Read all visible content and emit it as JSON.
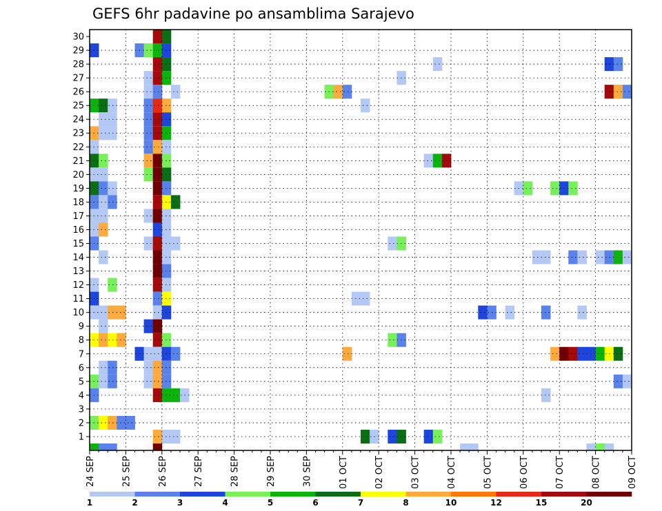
{
  "chart_data": {
    "type": "heatmap",
    "title": "GEFS 6hr padavine po ansamblima Sarajevo",
    "xlabel": "",
    "ylabel": "",
    "x_ticks": [
      "24 SEP",
      "25 SEP",
      "26 SEP",
      "27 SEP",
      "28 SEP",
      "29 SEP",
      "30 SEP",
      "01 OCT",
      "02 OCT",
      "03 OCT",
      "04 OCT",
      "05 OCT",
      "06 OCT",
      "07 OCT",
      "08 OCT",
      "09 OCT"
    ],
    "y_ticks": [
      "1",
      "2",
      "3",
      "4",
      "5",
      "6",
      "7",
      "8",
      "9",
      "10",
      "11",
      "12",
      "13",
      "14",
      "15",
      "16",
      "17",
      "18",
      "19",
      "20",
      "21",
      "22",
      "23",
      "24",
      "25",
      "26",
      "27",
      "28",
      "29",
      "30"
    ],
    "ylim": [
      0,
      30
    ],
    "x_step_unit": "6hr",
    "colorbar": {
      "labels": [
        "1",
        "2",
        "3",
        "4",
        "5",
        "6",
        "7",
        "8",
        "10",
        "12",
        "15",
        "20"
      ],
      "colors": [
        "#b4c8f5",
        "#5a82eb",
        "#1e46dc",
        "#78f05a",
        "#0ab40a",
        "#0a6e14",
        "#ffff00",
        "#ffaa3c",
        "#ff7800",
        "#e62814",
        "#a50a0a",
        "#6e0000"
      ]
    },
    "cells": [
      {
        "member": 30,
        "step": 8,
        "value": 15
      },
      {
        "member": 30,
        "step": 9,
        "value": 6
      },
      {
        "member": 29,
        "step": 1,
        "value": 3
      },
      {
        "member": 29,
        "step": 6,
        "value": 2
      },
      {
        "member": 29,
        "step": 7,
        "value": 4
      },
      {
        "member": 29,
        "step": 8,
        "value": 5
      },
      {
        "member": 29,
        "step": 9,
        "value": 3
      },
      {
        "member": 28,
        "step": 8,
        "value": 15
      },
      {
        "member": 28,
        "step": 9,
        "value": 6
      },
      {
        "member": 28,
        "step": 39,
        "value": 1
      },
      {
        "member": 28,
        "step": 58,
        "value": 3
      },
      {
        "member": 28,
        "step": 59,
        "value": 2
      },
      {
        "member": 27,
        "step": 7,
        "value": 1
      },
      {
        "member": 27,
        "step": 8,
        "value": 15
      },
      {
        "member": 27,
        "step": 9,
        "value": 5
      },
      {
        "member": 27,
        "step": 35,
        "value": 1
      },
      {
        "member": 26,
        "step": 7,
        "value": 1
      },
      {
        "member": 26,
        "step": 8,
        "value": 2
      },
      {
        "member": 26,
        "step": 10,
        "value": 1
      },
      {
        "member": 26,
        "step": 27,
        "value": 4
      },
      {
        "member": 26,
        "step": 28,
        "value": 8
      },
      {
        "member": 26,
        "step": 29,
        "value": 2
      },
      {
        "member": 26,
        "step": 58,
        "value": 15
      },
      {
        "member": 26,
        "step": 59,
        "value": 8
      },
      {
        "member": 26,
        "step": 60,
        "value": 2
      },
      {
        "member": 25,
        "step": 1,
        "value": 5
      },
      {
        "member": 25,
        "step": 2,
        "value": 6
      },
      {
        "member": 25,
        "step": 3,
        "value": 1
      },
      {
        "member": 25,
        "step": 7,
        "value": 2
      },
      {
        "member": 25,
        "step": 8,
        "value": 12
      },
      {
        "member": 25,
        "step": 9,
        "value": 8
      },
      {
        "member": 25,
        "step": 31,
        "value": 1
      },
      {
        "member": 24,
        "step": 2,
        "value": 1
      },
      {
        "member": 24,
        "step": 3,
        "value": 1
      },
      {
        "member": 24,
        "step": 7,
        "value": 2
      },
      {
        "member": 24,
        "step": 8,
        "value": 15
      },
      {
        "member": 24,
        "step": 9,
        "value": 3
      },
      {
        "member": 23,
        "step": 1,
        "value": 8
      },
      {
        "member": 23,
        "step": 2,
        "value": 1
      },
      {
        "member": 23,
        "step": 3,
        "value": 1
      },
      {
        "member": 23,
        "step": 7,
        "value": 2
      },
      {
        "member": 23,
        "step": 8,
        "value": 15
      },
      {
        "member": 23,
        "step": 9,
        "value": 5
      },
      {
        "member": 22,
        "step": 1,
        "value": 1
      },
      {
        "member": 22,
        "step": 7,
        "value": 2
      },
      {
        "member": 22,
        "step": 8,
        "value": 8
      },
      {
        "member": 22,
        "step": 9,
        "value": 1
      },
      {
        "member": 21,
        "step": 1,
        "value": 6
      },
      {
        "member": 21,
        "step": 2,
        "value": 4
      },
      {
        "member": 21,
        "step": 7,
        "value": 8
      },
      {
        "member": 21,
        "step": 8,
        "value": 20
      },
      {
        "member": 21,
        "step": 9,
        "value": 4
      },
      {
        "member": 21,
        "step": 38,
        "value": 1
      },
      {
        "member": 21,
        "step": 39,
        "value": 5
      },
      {
        "member": 21,
        "step": 40,
        "value": 15
      },
      {
        "member": 20,
        "step": 1,
        "value": 1
      },
      {
        "member": 20,
        "step": 2,
        "value": 1
      },
      {
        "member": 20,
        "step": 7,
        "value": 4
      },
      {
        "member": 20,
        "step": 8,
        "value": 20
      },
      {
        "member": 20,
        "step": 9,
        "value": 6
      },
      {
        "member": 19,
        "step": 1,
        "value": 6
      },
      {
        "member": 19,
        "step": 2,
        "value": 2
      },
      {
        "member": 19,
        "step": 3,
        "value": 1
      },
      {
        "member": 19,
        "step": 8,
        "value": 20
      },
      {
        "member": 19,
        "step": 9,
        "value": 2
      },
      {
        "member": 19,
        "step": 48,
        "value": 1
      },
      {
        "member": 19,
        "step": 49,
        "value": 4
      },
      {
        "member": 19,
        "step": 52,
        "value": 4
      },
      {
        "member": 19,
        "step": 53,
        "value": 3
      },
      {
        "member": 19,
        "step": 54,
        "value": 4
      },
      {
        "member": 18,
        "step": 1,
        "value": 2
      },
      {
        "member": 18,
        "step": 2,
        "value": 1
      },
      {
        "member": 18,
        "step": 3,
        "value": 2
      },
      {
        "member": 18,
        "step": 8,
        "value": 15
      },
      {
        "member": 18,
        "step": 9,
        "value": 7
      },
      {
        "member": 18,
        "step": 10,
        "value": 6
      },
      {
        "member": 17,
        "step": 1,
        "value": 1
      },
      {
        "member": 17,
        "step": 2,
        "value": 1
      },
      {
        "member": 17,
        "step": 7,
        "value": 1
      },
      {
        "member": 17,
        "step": 8,
        "value": 20
      },
      {
        "member": 17,
        "step": 9,
        "value": 1
      },
      {
        "member": 16,
        "step": 1,
        "value": 1
      },
      {
        "member": 16,
        "step": 2,
        "value": 8
      },
      {
        "member": 16,
        "step": 8,
        "value": 3
      },
      {
        "member": 16,
        "step": 9,
        "value": 1
      },
      {
        "member": 15,
        "step": 1,
        "value": 2
      },
      {
        "member": 15,
        "step": 7,
        "value": 1
      },
      {
        "member": 15,
        "step": 8,
        "value": 15
      },
      {
        "member": 15,
        "step": 9,
        "value": 1
      },
      {
        "member": 15,
        "step": 10,
        "value": 1
      },
      {
        "member": 15,
        "step": 34,
        "value": 1
      },
      {
        "member": 15,
        "step": 35,
        "value": 4
      },
      {
        "member": 14,
        "step": 2,
        "value": 1
      },
      {
        "member": 14,
        "step": 8,
        "value": 20
      },
      {
        "member": 14,
        "step": 9,
        "value": 1
      },
      {
        "member": 14,
        "step": 50,
        "value": 1
      },
      {
        "member": 14,
        "step": 51,
        "value": 1
      },
      {
        "member": 14,
        "step": 54,
        "value": 2
      },
      {
        "member": 14,
        "step": 55,
        "value": 1
      },
      {
        "member": 14,
        "step": 57,
        "value": 1
      },
      {
        "member": 14,
        "step": 58,
        "value": 2
      },
      {
        "member": 14,
        "step": 59,
        "value": 5
      },
      {
        "member": 14,
        "step": 60,
        "value": 1
      },
      {
        "member": 13,
        "step": 8,
        "value": 20
      },
      {
        "member": 13,
        "step": 9,
        "value": 2
      },
      {
        "member": 12,
        "step": 1,
        "value": 1
      },
      {
        "member": 12,
        "step": 3,
        "value": 4
      },
      {
        "member": 12,
        "step": 8,
        "value": 15
      },
      {
        "member": 12,
        "step": 9,
        "value": 1
      },
      {
        "member": 11,
        "step": 1,
        "value": 3
      },
      {
        "member": 11,
        "step": 8,
        "value": 2
      },
      {
        "member": 11,
        "step": 9,
        "value": 7
      },
      {
        "member": 11,
        "step": 30,
        "value": 1
      },
      {
        "member": 11,
        "step": 31,
        "value": 1
      },
      {
        "member": 10,
        "step": 1,
        "value": 1
      },
      {
        "member": 10,
        "step": 2,
        "value": 1
      },
      {
        "member": 10,
        "step": 3,
        "value": 8
      },
      {
        "member": 10,
        "step": 4,
        "value": 8
      },
      {
        "member": 10,
        "step": 8,
        "value": 1
      },
      {
        "member": 10,
        "step": 9,
        "value": 3
      },
      {
        "member": 10,
        "step": 44,
        "value": 3
      },
      {
        "member": 10,
        "step": 45,
        "value": 2
      },
      {
        "member": 10,
        "step": 47,
        "value": 1
      },
      {
        "member": 10,
        "step": 51,
        "value": 2
      },
      {
        "member": 10,
        "step": 55,
        "value": 1
      },
      {
        "member": 9,
        "step": 2,
        "value": 1
      },
      {
        "member": 9,
        "step": 7,
        "value": 3
      },
      {
        "member": 9,
        "step": 8,
        "value": 20
      },
      {
        "member": 8,
        "step": 1,
        "value": 7
      },
      {
        "member": 8,
        "step": 2,
        "value": 8
      },
      {
        "member": 8,
        "step": 3,
        "value": 7
      },
      {
        "member": 8,
        "step": 4,
        "value": 8
      },
      {
        "member": 8,
        "step": 8,
        "value": 15
      },
      {
        "member": 8,
        "step": 9,
        "value": 4
      },
      {
        "member": 8,
        "step": 34,
        "value": 4
      },
      {
        "member": 8,
        "step": 35,
        "value": 2
      },
      {
        "member": 7,
        "step": 6,
        "value": 3
      },
      {
        "member": 7,
        "step": 7,
        "value": 1
      },
      {
        "member": 7,
        "step": 8,
        "value": 1
      },
      {
        "member": 7,
        "step": 9,
        "value": 3
      },
      {
        "member": 7,
        "step": 10,
        "value": 2
      },
      {
        "member": 7,
        "step": 29,
        "value": 8
      },
      {
        "member": 7,
        "step": 52,
        "value": 8
      },
      {
        "member": 7,
        "step": 53,
        "value": 20
      },
      {
        "member": 7,
        "step": 54,
        "value": 15
      },
      {
        "member": 7,
        "step": 55,
        "value": 3
      },
      {
        "member": 7,
        "step": 56,
        "value": 3
      },
      {
        "member": 7,
        "step": 57,
        "value": 5
      },
      {
        "member": 7,
        "step": 58,
        "value": 7
      },
      {
        "member": 7,
        "step": 59,
        "value": 6
      },
      {
        "member": 6,
        "step": 2,
        "value": 1
      },
      {
        "member": 6,
        "step": 3,
        "value": 2
      },
      {
        "member": 6,
        "step": 7,
        "value": 1
      },
      {
        "member": 6,
        "step": 8,
        "value": 8
      },
      {
        "member": 6,
        "step": 9,
        "value": 2
      },
      {
        "member": 5,
        "step": 1,
        "value": 4
      },
      {
        "member": 5,
        "step": 2,
        "value": 1
      },
      {
        "member": 5,
        "step": 3,
        "value": 2
      },
      {
        "member": 5,
        "step": 7,
        "value": 1
      },
      {
        "member": 5,
        "step": 8,
        "value": 8
      },
      {
        "member": 5,
        "step": 9,
        "value": 2
      },
      {
        "member": 5,
        "step": 59,
        "value": 2
      },
      {
        "member": 5,
        "step": 60,
        "value": 1
      },
      {
        "member": 4,
        "step": 1,
        "value": 2
      },
      {
        "member": 4,
        "step": 8,
        "value": 15
      },
      {
        "member": 4,
        "step": 9,
        "value": 5
      },
      {
        "member": 4,
        "step": 10,
        "value": 5
      },
      {
        "member": 4,
        "step": 11,
        "value": 1
      },
      {
        "member": 4,
        "step": 51,
        "value": 1
      },
      {
        "member": 2,
        "step": 1,
        "value": 4
      },
      {
        "member": 2,
        "step": 2,
        "value": 7
      },
      {
        "member": 2,
        "step": 3,
        "value": 8
      },
      {
        "member": 2,
        "step": 4,
        "value": 2
      },
      {
        "member": 2,
        "step": 5,
        "value": 2
      },
      {
        "member": 1,
        "step": 8,
        "value": 8
      },
      {
        "member": 1,
        "step": 9,
        "value": 1
      },
      {
        "member": 1,
        "step": 10,
        "value": 1
      },
      {
        "member": 1,
        "step": 31,
        "value": 6
      },
      {
        "member": 1,
        "step": 32,
        "value": 1
      },
      {
        "member": 1,
        "step": 34,
        "value": 3
      },
      {
        "member": 1,
        "step": 35,
        "value": 6
      },
      {
        "member": 1,
        "step": 38,
        "value": 3
      },
      {
        "member": 1,
        "step": 39,
        "value": 4
      },
      {
        "member": 0,
        "step": 1,
        "value": 5
      },
      {
        "member": 0,
        "step": 2,
        "value": 2
      },
      {
        "member": 0,
        "step": 3,
        "value": 2
      },
      {
        "member": 0,
        "step": 8,
        "value": 20
      },
      {
        "member": 0,
        "step": 42,
        "value": 1
      },
      {
        "member": 0,
        "step": 43,
        "value": 1
      },
      {
        "member": 0,
        "step": 56,
        "value": 1
      },
      {
        "member": 0,
        "step": 57,
        "value": 4
      },
      {
        "member": 0,
        "step": 58,
        "value": 1
      }
    ]
  }
}
